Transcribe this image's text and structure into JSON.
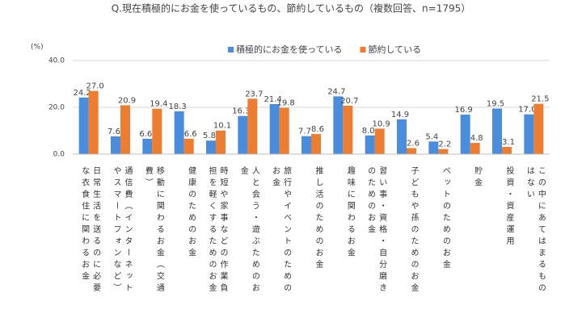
{
  "chart_data": {
    "type": "bar",
    "title": "Q.現在積極的にお金を使っているもの、節約しているもの（複数回答、n=1795）",
    "y_unit": "(%)",
    "categories": [
      "日常生活を送るのに必要な衣食住に関わるお金",
      "通信費（インターネットやスマートフォンなど）",
      "移動に関わるお金（交通費）",
      "健康のためのお金",
      "時短や家事などの作業負担を軽くするためのお金",
      "人と会う・遊ぶためのお金",
      "旅行やイベントのためのお金",
      "推し活のためのお金",
      "趣味に関わるお金",
      "習い事・資格・自分磨きのためのお金",
      "子どもや孫のためのお金",
      "ペットのためのお金",
      "貯金",
      "投資・資産運用",
      "この中にあてはまるものはない"
    ],
    "series": [
      {
        "name": "積極的にお金を使っている",
        "color": "#4a8ddc",
        "values": [
          24.2,
          7.6,
          6.6,
          18.3,
          5.8,
          16.3,
          21.4,
          7.7,
          24.7,
          8.0,
          14.9,
          5.4,
          16.9,
          19.5,
          17.0
        ],
        "value_labels": [
          "24.2",
          "7.6",
          "6.6",
          "18.3",
          "5.8",
          "16.3",
          "21.4",
          "7.7",
          "24.7",
          "8.0",
          "14.9",
          "5.4",
          "16.9",
          "19.5",
          "17.0"
        ]
      },
      {
        "name": "節約している",
        "color": "#ed7d31",
        "values": [
          27.0,
          20.9,
          19.4,
          6.6,
          10.1,
          23.7,
          19.8,
          8.6,
          20.7,
          10.9,
          2.6,
          2.2,
          4.8,
          3.1,
          21.5
        ],
        "value_labels": [
          "27.0",
          "20.9",
          "19.4",
          "6.6",
          "10.1",
          "23.7",
          "19.8",
          "8.6",
          "20.7",
          "10.9",
          "2.6",
          "2.2",
          "4.8",
          "3.1",
          "21.5"
        ]
      }
    ],
    "ylim": [
      0,
      40
    ],
    "yticks": [
      {
        "value": 0,
        "label": "0.0"
      },
      {
        "value": 20,
        "label": "20.0"
      },
      {
        "value": 40,
        "label": "40.0"
      }
    ],
    "grid": true
  }
}
